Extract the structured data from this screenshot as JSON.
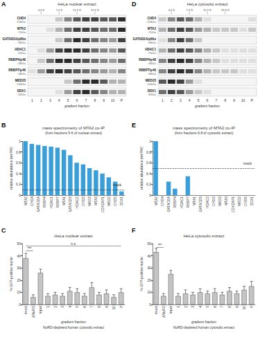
{
  "chart_data": [
    {
      "panel": "B",
      "type": "bar",
      "title": "mass spectrometry of MTA2 co-IP",
      "subtitle": "(from fractions 5-6 of nuclear extract)",
      "ylabel": "relative abundance (emPAI)",
      "categories": [
        "MTA2",
        "CHD4",
        "GATAD2A",
        "RBBP4",
        "HDAC1",
        "RBBP7",
        "MTA1",
        "GATAD2B",
        "HDAC2",
        "CHD3",
        "MBD3",
        "MTA3",
        "CDK2AP1",
        "MBD2",
        "CHD5",
        "DDX1"
      ],
      "values": [
        1.0,
        0.95,
        0.93,
        0.91,
        0.9,
        0.88,
        0.84,
        0.74,
        0.6,
        0.57,
        0.5,
        0.46,
        0.4,
        0.33,
        0.25,
        0.07
      ],
      "color": "#3a9fd8",
      "ylim": [
        0,
        1
      ],
      "yticks": [
        0,
        0.2,
        0.4,
        0.6,
        0.8,
        1
      ],
      "grid": false,
      "reference_line": {
        "value": 0.1,
        "label": "mock"
      }
    },
    {
      "panel": "C",
      "type": "bar",
      "title": "HeLa nuclear extract",
      "ylabel": "% GFP-positive nuclei",
      "xlabel": "gradient fraction",
      "footnote": "NuRD-depleted human cytosolic extract",
      "categories": [
        "mock",
        "ΔNuRD",
        "input",
        "1",
        "2",
        "3",
        "4",
        "5",
        "6",
        "7",
        "8",
        "9",
        "10",
        "P"
      ],
      "values": [
        38,
        6,
        26,
        7,
        8,
        7,
        11,
        10,
        7,
        14,
        8,
        9,
        6,
        10
      ],
      "errors": [
        4,
        2,
        3,
        2,
        2,
        2,
        3,
        3,
        2,
        4,
        2,
        3,
        2,
        3
      ],
      "color": "#c4c4c4",
      "ylim": [
        0,
        50
      ],
      "yticks": [
        0,
        10,
        20,
        30,
        40,
        50
      ],
      "grid": false,
      "annotations": [
        {
          "text": "***",
          "from": "mock",
          "to": "ΔNuRD",
          "y": 44
        },
        {
          "text": "n.s.",
          "from": "mock",
          "to": "P",
          "y": 48
        }
      ]
    },
    {
      "panel": "E",
      "type": "bar",
      "title": "mass spectrometry of MTA2 co-IP",
      "subtitle": "(from fractions 6-8 of cytosolic extract)",
      "ylabel": "relative abundance (emPAI)",
      "categories": [
        "MTA2",
        "CHD4",
        "GATAD2A",
        "RBBP4",
        "HDAC1",
        "RBBP7",
        "MTA1",
        "GATAD2B",
        "HDAC2",
        "CHD3",
        "MBD3",
        "MTA3",
        "CDK2AP1",
        "MBD2",
        "CHD5",
        "DDX1"
      ],
      "values": [
        1.0,
        0,
        0.25,
        0.12,
        0,
        0.35,
        0,
        0,
        0,
        0,
        0,
        0,
        0,
        0,
        0,
        0
      ],
      "color": "#3a9fd8",
      "ylim": [
        0,
        1
      ],
      "yticks": [
        0,
        0.2,
        0.4,
        0.6,
        0.8,
        1
      ],
      "grid": false,
      "reference_line": {
        "value": 0.5,
        "label": "mock"
      }
    },
    {
      "panel": "F",
      "type": "bar",
      "title": "HeLa cytosolic extract",
      "ylabel": "% GFP-positive nuclei",
      "xlabel": "gradient fraction",
      "footnote": "NuRD-depleted human cytosolic extract",
      "categories": [
        "mock",
        "ΔNuRD",
        "input",
        "1",
        "2",
        "3",
        "4",
        "5",
        "6",
        "7",
        "8",
        "9",
        "10",
        "P"
      ],
      "values": [
        43,
        7,
        25,
        7,
        9,
        8,
        10,
        9,
        10,
        8,
        11,
        9,
        12,
        15
      ],
      "errors": [
        3,
        2,
        3,
        2,
        3,
        2,
        3,
        2,
        3,
        2,
        3,
        2,
        3,
        4
      ],
      "color": "#c4c4c4",
      "ylim": [
        0,
        50
      ],
      "yticks": [
        0,
        10,
        20,
        30,
        40,
        50
      ],
      "grid": false,
      "annotations": [
        {
          "text": "***",
          "from": "mock",
          "to": "ΔNuRD",
          "y": 47
        }
      ]
    }
  ],
  "blots": [
    {
      "panel": "A",
      "title": "HeLa nuclear extract",
      "xlabel": "gradient fraction",
      "lanes": [
        "1",
        "2",
        "3",
        "4",
        "5",
        "6",
        "7",
        "8",
        "9",
        "10",
        "P"
      ],
      "markers": [
        {
          "label": "4.4 S",
          "lane": "2"
        },
        {
          "label": "7.4 S",
          "lane": "4"
        },
        {
          "label": "11.3 S",
          "lane": "6"
        },
        {
          "label": "19.4 S",
          "lane": "8"
        }
      ],
      "rows": [
        {
          "name": "CHD4",
          "kda": "~218kDa",
          "intensities": [
            0,
            0,
            0,
            0.2,
            0.5,
            0.7,
            0.8,
            0.8,
            0.7,
            0.7,
            0.9
          ]
        },
        {
          "name": "MTA2",
          "kda": "~75kDa",
          "intensities": [
            0,
            0,
            0.1,
            0.3,
            0.6,
            0.8,
            0.8,
            0.7,
            0.6,
            0.6,
            0.9
          ]
        },
        {
          "name": "GATAD2A/p66α",
          "kda": "~68kDa",
          "intensities": [
            0,
            0,
            0,
            0.2,
            0.6,
            0.9,
            0.8,
            0.6,
            0.5,
            0.4,
            0.8
          ]
        },
        {
          "name": "HDAC1",
          "kda": "~55kDa",
          "intensities": [
            0,
            0.1,
            0.4,
            0.8,
            0.9,
            0.9,
            0.8,
            0.6,
            0.5,
            0.4,
            0.7
          ]
        },
        {
          "name": "RBBP4/p48",
          "kda": "~48kDa",
          "intensities": [
            0,
            0.2,
            0.6,
            0.9,
            0.9,
            0.8,
            0.7,
            0.6,
            0.5,
            0.4,
            0.6
          ]
        },
        {
          "name": "RBBP7/p46",
          "kda": "~48kDa",
          "intensities": [
            0.1,
            0.4,
            0.8,
            0.9,
            0.8,
            0.7,
            0.6,
            0.5,
            0.4,
            0.3,
            0.5
          ]
        },
        {
          "name": "MED23",
          "kda": "~156kDa",
          "intensities": [
            0,
            0,
            0,
            0,
            0.2,
            0.6,
            0.9,
            0.9,
            0.7,
            0.3,
            0.3
          ]
        },
        {
          "name": "DDX1",
          "kda": "~82kDa",
          "intensities": [
            0,
            0,
            0,
            0.1,
            0.4,
            0.8,
            0.9,
            0.7,
            0.5,
            0.3,
            0.3
          ]
        }
      ]
    },
    {
      "panel": "D",
      "title": "HeLa cytosolic extract",
      "xlabel": "gradient fraction",
      "lanes": [
        "1",
        "2",
        "3",
        "4",
        "5",
        "6",
        "7",
        "8",
        "9",
        "10",
        "P"
      ],
      "markers": [
        {
          "label": "4.4 S",
          "lane": "2"
        },
        {
          "label": "7.4 S",
          "lane": "4"
        },
        {
          "label": "11.3 S",
          "lane": "6"
        },
        {
          "label": "19.4 S",
          "lane": "8"
        }
      ],
      "rows": [
        {
          "name": "CHD4",
          "kda": "~218kDa",
          "intensities": [
            0.2,
            0.5,
            0.7,
            0.6,
            0.3,
            0.1,
            0,
            0,
            0,
            0,
            0.1
          ]
        },
        {
          "name": "MTA2",
          "kda": "~75kDa",
          "intensities": [
            0.3,
            0.6,
            0.8,
            0.7,
            0.4,
            0.3,
            0.2,
            0.2,
            0.2,
            0.1,
            0.2
          ]
        },
        {
          "name": "GATAD2A/p66α",
          "kda": "~68kDa",
          "intensities": [
            0.1,
            0.5,
            0.8,
            0.6,
            0.2,
            0,
            0,
            0,
            0,
            0,
            0
          ]
        },
        {
          "name": "HDAC1",
          "kda": "~55kDa",
          "intensities": [
            0.3,
            0.6,
            0.8,
            0.7,
            0.5,
            0.3,
            0.2,
            0.1,
            0.1,
            0.1,
            0.1
          ]
        },
        {
          "name": "RBBP4/p48",
          "kda": "~48kDa",
          "intensities": [
            0.5,
            0.8,
            0.9,
            0.8,
            0.5,
            0.3,
            0.2,
            0.1,
            0.1,
            0.1,
            0.1
          ]
        },
        {
          "name": "RBBP7/p46",
          "kda": "~48kDa",
          "intensities": [
            0.5,
            0.8,
            0.9,
            0.8,
            0.5,
            0.3,
            0.2,
            0.2,
            0.2,
            0.1,
            0.1
          ]
        },
        {
          "name": "MED23",
          "kda": "~156kDa",
          "intensities": [
            0.7,
            0.9,
            0.8,
            0.4,
            0.1,
            0,
            0,
            0,
            0,
            0,
            0
          ]
        },
        {
          "name": "DDX1",
          "kda": "~82kDa",
          "intensities": [
            0.6,
            0.8,
            0.7,
            0.4,
            0.2,
            0.1,
            0,
            0,
            0,
            0,
            0
          ]
        }
      ]
    }
  ]
}
